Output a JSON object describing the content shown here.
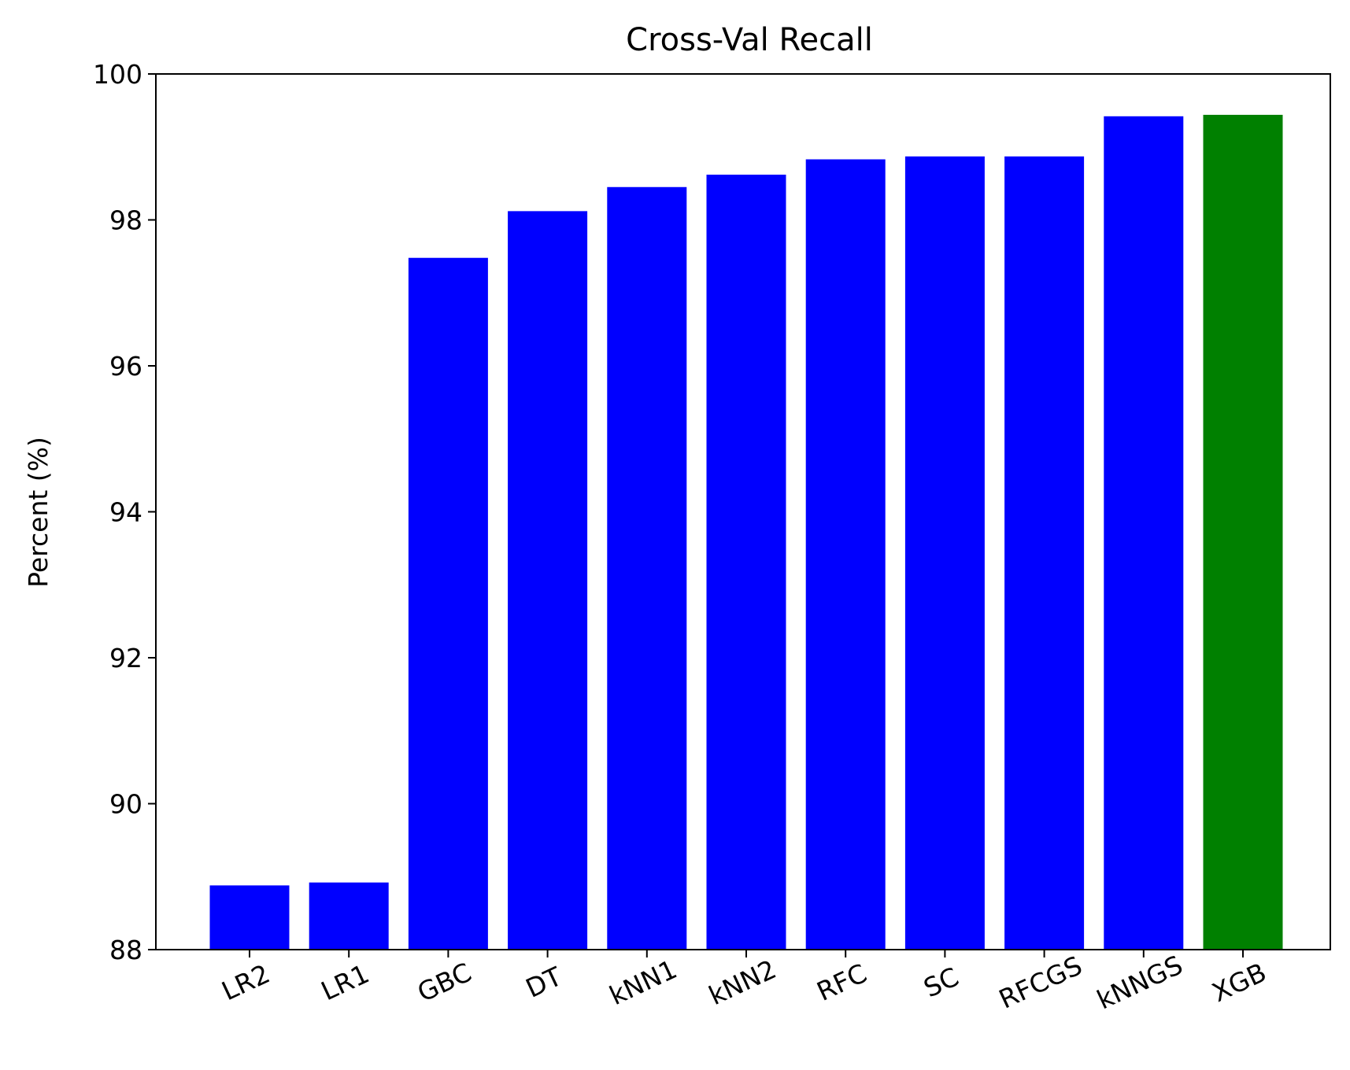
{
  "chart_data": {
    "type": "bar",
    "title": "Cross-Val Recall",
    "xlabel": "",
    "ylabel": "Percent (%)",
    "ylim": [
      88,
      100
    ],
    "yticks": [
      88,
      90,
      92,
      94,
      96,
      98,
      100
    ],
    "categories": [
      "LR2",
      "LR1",
      "GBC",
      "DT",
      "kNN1",
      "kNN2",
      "RFC",
      "SC",
      "RFCGS",
      "kNNGS",
      "XGB"
    ],
    "values": [
      88.88,
      88.92,
      97.48,
      98.12,
      98.45,
      98.62,
      98.83,
      98.87,
      98.87,
      99.42,
      99.44
    ],
    "colors": [
      "#0000ff",
      "#0000ff",
      "#0000ff",
      "#0000ff",
      "#0000ff",
      "#0000ff",
      "#0000ff",
      "#0000ff",
      "#0000ff",
      "#0000ff",
      "#008000"
    ],
    "grid": false,
    "legend": "none"
  }
}
